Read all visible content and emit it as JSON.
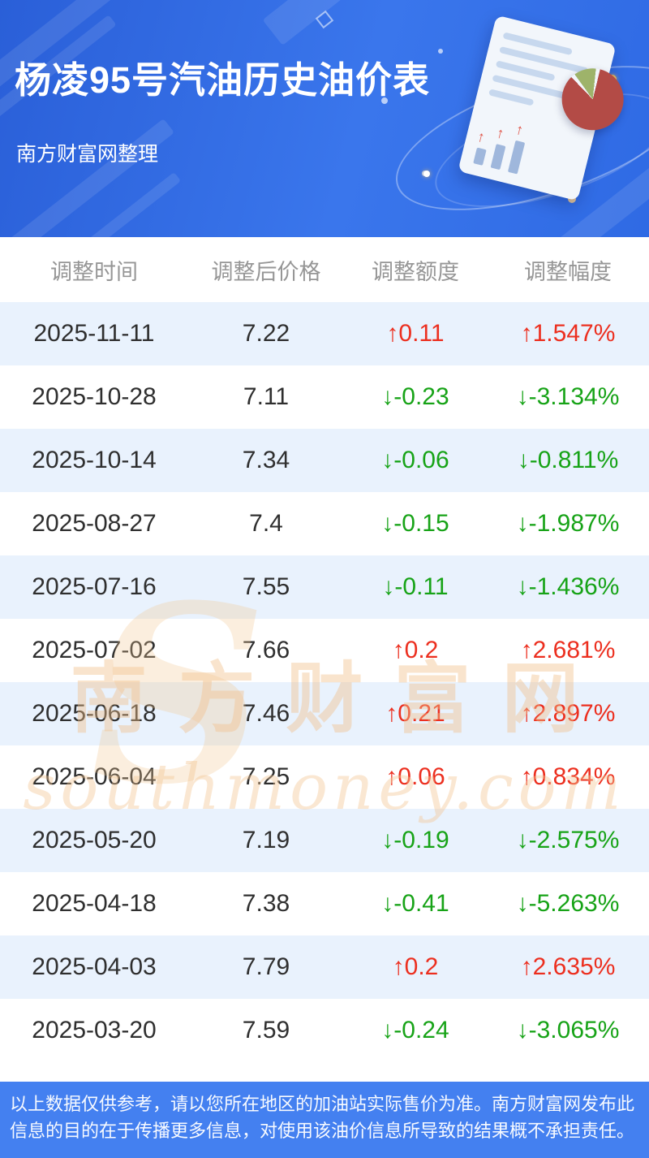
{
  "header": {
    "title": "杨凌95号汽油历史油价表",
    "subtitle": "南方财富网整理"
  },
  "chart_data": {
    "type": "table",
    "title": "杨凌95号汽油历史油价表",
    "columns": [
      "调整时间",
      "调整后价格",
      "调整额度",
      "调整幅度"
    ],
    "rows": [
      {
        "date": "2025-11-11",
        "price": "7.22",
        "change": 0.11,
        "percent": 1.547,
        "change_label": "↑0.11",
        "percent_label": "↑1.547%",
        "direction": "up"
      },
      {
        "date": "2025-10-28",
        "price": "7.11",
        "change": -0.23,
        "percent": -3.134,
        "change_label": "↓-0.23",
        "percent_label": "↓-3.134%",
        "direction": "down"
      },
      {
        "date": "2025-10-14",
        "price": "7.34",
        "change": -0.06,
        "percent": -0.811,
        "change_label": "↓-0.06",
        "percent_label": "↓-0.811%",
        "direction": "down"
      },
      {
        "date": "2025-08-27",
        "price": "7.4",
        "change": -0.15,
        "percent": -1.987,
        "change_label": "↓-0.15",
        "percent_label": "↓-1.987%",
        "direction": "down"
      },
      {
        "date": "2025-07-16",
        "price": "7.55",
        "change": -0.11,
        "percent": -1.436,
        "change_label": "↓-0.11",
        "percent_label": "↓-1.436%",
        "direction": "down"
      },
      {
        "date": "2025-07-02",
        "price": "7.66",
        "change": 0.2,
        "percent": 2.681,
        "change_label": "↑0.2",
        "percent_label": "↑2.681%",
        "direction": "up"
      },
      {
        "date": "2025-06-18",
        "price": "7.46",
        "change": 0.21,
        "percent": 2.897,
        "change_label": "↑0.21",
        "percent_label": "↑2.897%",
        "direction": "up"
      },
      {
        "date": "2025-06-04",
        "price": "7.25",
        "change": 0.06,
        "percent": 0.834,
        "change_label": "↑0.06",
        "percent_label": "↑0.834%",
        "direction": "up"
      },
      {
        "date": "2025-05-20",
        "price": "7.19",
        "change": -0.19,
        "percent": -2.575,
        "change_label": "↓-0.19",
        "percent_label": "↓-2.575%",
        "direction": "down"
      },
      {
        "date": "2025-04-18",
        "price": "7.38",
        "change": -0.41,
        "percent": -5.263,
        "change_label": "↓-0.41",
        "percent_label": "↓-5.263%",
        "direction": "down"
      },
      {
        "date": "2025-04-03",
        "price": "7.79",
        "change": 0.2,
        "percent": 2.635,
        "change_label": "↑0.2",
        "percent_label": "↑2.635%",
        "direction": "up"
      },
      {
        "date": "2025-03-20",
        "price": "7.59",
        "change": -0.24,
        "percent": -3.065,
        "change_label": "↓-0.24",
        "percent_label": "↓-3.065%",
        "direction": "down"
      }
    ]
  },
  "watermark": {
    "cn": "南方财富网",
    "en": "southmoney.com",
    "initial": "S"
  },
  "footer": {
    "text": "以上数据仅供参考，请以您所在地区的加油站实际售价为准。南方财富网发布此信息的目的在于传播更多信息，对使用该油价信息所导致的结果概不承担责任。"
  },
  "colors": {
    "up": "#ec2f1f",
    "down": "#17a317",
    "header_bg": "#2f6ae4",
    "row_alt_bg": "#e9f2fd",
    "footer_bg": "#4480f0"
  }
}
